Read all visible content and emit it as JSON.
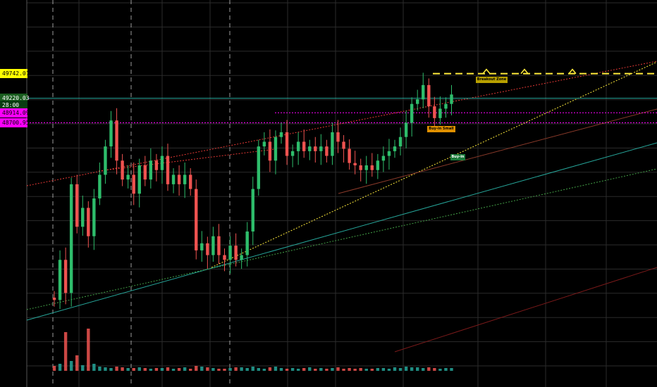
{
  "colors": {
    "background": "#000000",
    "bull": "#26a69a",
    "bull_candle": "#2ebd6b",
    "bear": "#ef5350",
    "grid": "#2b2b2b",
    "grid_dashed": "#d0d0d0",
    "yellow": "#ffeb3b",
    "magenta": "#ff00ff",
    "red_channel": "#e53935",
    "teal_line": "#26a69a",
    "green_dotted": "#43a047"
  },
  "price_tags": [
    {
      "label": "49742.01",
      "bg": "#ffff00",
      "fg": "#000000",
      "price": 49742.01
    },
    {
      "label": "49220.03",
      "bg": "#1b5e20",
      "fg": "#ffffff",
      "price": 49220.03
    },
    {
      "label": "28:00",
      "bg": "#0a3d12",
      "fg": "#ffffff",
      "price": 49070
    },
    {
      "label": "48914.09",
      "bg": "#ff00ff",
      "fg": "#000000",
      "price": 48914.09
    },
    {
      "label": "48700.95",
      "bg": "#ff00ff",
      "fg": "#000000",
      "price": 48700.95
    }
  ],
  "annotations": [
    {
      "text": "Breakout Zone",
      "bg": "#b8a000",
      "fg": "#000000",
      "price": 49742.01,
      "bar": 74.5
    },
    {
      "text": "Buy-in Small",
      "bg": "#e09000",
      "fg": "#000000",
      "price": 48700.95,
      "bar": 66
    },
    {
      "text": "Buy-in",
      "bg": "#1b7a3a",
      "fg": "#ffffff",
      "price": 48100,
      "bar": 70
    }
  ],
  "chart_data": {
    "type": "candlestick",
    "y_axis_side": "left",
    "ylim": [
      44300,
      51300
    ],
    "levels": [
      {
        "price": 49742.01,
        "style": "dashed",
        "color": "#ffeb3b"
      },
      {
        "price": 49220.03,
        "style": "solid",
        "color": "#26a69a"
      },
      {
        "price": 48914.09,
        "style": "dotted",
        "color": "#ff00ff"
      },
      {
        "price": 48700.95,
        "style": "dotted",
        "color": "#ff00ff"
      }
    ],
    "closes": [
      44950,
      45800,
      45100,
      47400,
      46500,
      46900,
      46300,
      47100,
      47600,
      48200,
      48750,
      47900,
      47500,
      47600,
      47200,
      47800,
      47500,
      47900,
      47700,
      48000,
      47400,
      47600,
      47400,
      47600,
      47300,
      46000,
      46150,
      45900,
      46300,
      45900,
      45800,
      46100,
      45800,
      45900,
      46400,
      47300,
      48200,
      48300,
      47900,
      48400,
      48500,
      48000,
      48100,
      48300,
      48100,
      48200,
      48100,
      48200,
      48000,
      48500,
      48300,
      48150,
      47850,
      47800,
      47700,
      47800,
      47700,
      47900,
      48000,
      48100,
      48200,
      48400,
      48700,
      49100,
      49200,
      49500,
      49050,
      48800,
      49000,
      49100,
      49300
    ],
    "volumes": [
      7,
      10,
      55,
      14,
      22,
      8,
      60,
      10,
      6,
      5,
      4,
      6,
      5,
      4,
      4,
      5,
      4,
      3,
      4,
      4,
      5,
      3,
      4,
      5,
      3,
      7,
      6,
      5,
      4,
      3,
      3,
      4,
      5,
      5,
      4,
      6,
      4,
      3,
      5,
      6,
      4,
      3,
      4,
      3,
      4,
      5,
      3,
      4,
      3,
      4,
      5,
      3,
      4,
      3,
      4,
      3,
      3,
      4,
      4,
      3,
      5,
      4,
      6,
      5,
      5,
      4,
      5,
      4,
      3,
      4,
      4
    ]
  }
}
